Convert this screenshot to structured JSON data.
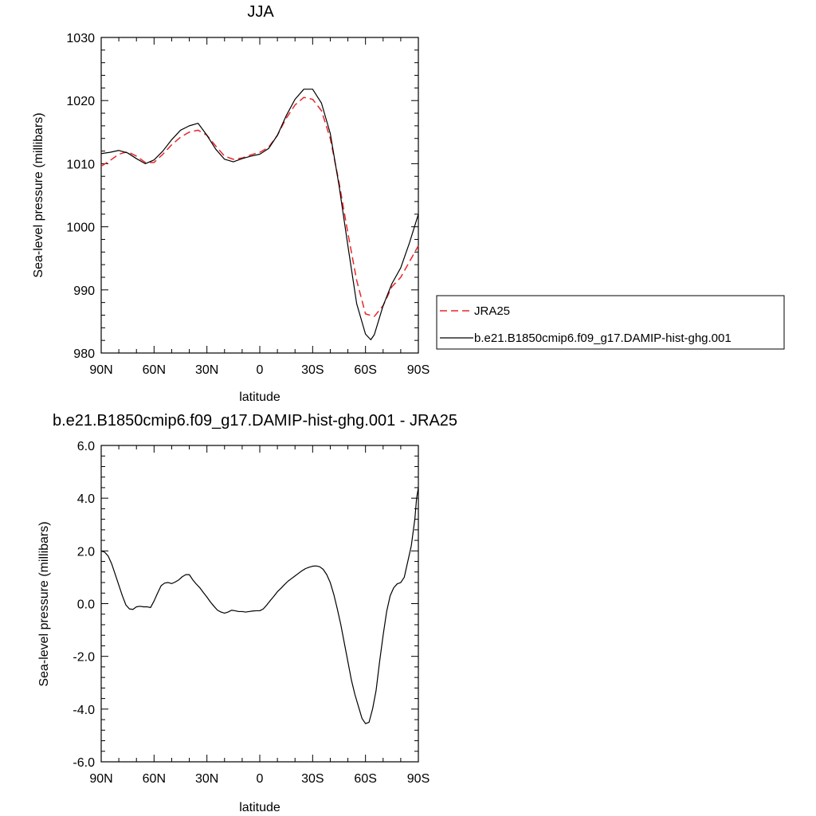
{
  "chart_data": [
    {
      "type": "line",
      "title": "JJA",
      "xlabel": "latitude",
      "ylabel": "Sea-level pressure (millibars)",
      "xlim": [
        90,
        -90
      ],
      "ylim": [
        980,
        1030
      ],
      "x_ticks": [
        90,
        60,
        30,
        0,
        -30,
        -60,
        -90
      ],
      "x_tick_labels": [
        "90N",
        "60N",
        "30N",
        "0",
        "30S",
        "60S",
        "90S"
      ],
      "y_ticks": [
        980,
        990,
        1000,
        1010,
        1020,
        1030
      ],
      "y_tick_labels": [
        "980",
        "990",
        "1000",
        "1010",
        "1020",
        "1030"
      ],
      "legend_position": "right",
      "series": [
        {
          "name": "JRA25",
          "color": "#e8262b",
          "dash": "dashed",
          "x": [
            90,
            85,
            80,
            75,
            70,
            65,
            60,
            55,
            50,
            45,
            40,
            35,
            30,
            25,
            20,
            15,
            10,
            5,
            0,
            -5,
            -10,
            -15,
            -20,
            -25,
            -30,
            -35,
            -40,
            -45,
            -50,
            -55,
            -60,
            -65,
            -70,
            -75,
            -80,
            -85,
            -90
          ],
          "y": [
            1009.6,
            1010.5,
            1011.5,
            1011.9,
            1011.2,
            1010.2,
            1010.2,
            1011.5,
            1013.0,
            1014.2,
            1015.0,
            1015.3,
            1014.5,
            1012.8,
            1011.2,
            1010.7,
            1010.9,
            1011.4,
            1011.8,
            1012.6,
            1014.5,
            1017.2,
            1019.3,
            1020.5,
            1020.2,
            1018.4,
            1014.0,
            1007.0,
            999.0,
            991.5,
            986.2,
            985.8,
            987.5,
            990.5,
            992.0,
            994.5,
            997.0
          ]
        },
        {
          "name": "b.e21.B1850cmip6.f09_g17.DAMIP-hist-ghg.001",
          "color": "#000000",
          "dash": "solid",
          "x": [
            90,
            85,
            80,
            75,
            70,
            65,
            60,
            55,
            50,
            45,
            40,
            35,
            30,
            25,
            20,
            15,
            10,
            5,
            0,
            -5,
            -10,
            -15,
            -20,
            -25,
            -30,
            -35,
            -40,
            -45,
            -50,
            -55,
            -60,
            -63,
            -65,
            -70,
            -75,
            -80,
            -85,
            -90
          ],
          "y": [
            1011.6,
            1011.8,
            1012.1,
            1011.7,
            1010.8,
            1010.0,
            1010.6,
            1012.0,
            1013.8,
            1015.3,
            1016.0,
            1016.4,
            1014.5,
            1012.3,
            1010.7,
            1010.3,
            1010.8,
            1011.2,
            1011.5,
            1012.4,
            1014.5,
            1017.6,
            1020.2,
            1021.8,
            1021.8,
            1019.6,
            1014.8,
            1006.5,
            997.0,
            987.8,
            983.0,
            982.1,
            982.9,
            987.5,
            991.0,
            993.5,
            997.5,
            1002.0
          ]
        }
      ]
    },
    {
      "type": "line",
      "title": "b.e21.B1850cmip6.f09_g17.DAMIP-hist-ghg.001 - JRA25",
      "xlabel": "latitude",
      "ylabel": "Sea-level pressure (millibars)",
      "xlim": [
        90,
        -90
      ],
      "ylim": [
        -6,
        6
      ],
      "x_ticks": [
        90,
        60,
        30,
        0,
        -30,
        -60,
        -90
      ],
      "x_tick_labels": [
        "90N",
        "60N",
        "30N",
        "0",
        "30S",
        "60S",
        "90S"
      ],
      "y_ticks": [
        -6,
        -4,
        -2,
        0,
        2,
        4,
        6
      ],
      "y_tick_labels": [
        "-6.0",
        "-4.0",
        "-2.0",
        "0.0",
        "2.0",
        "4.0",
        "6.0"
      ],
      "series": [
        {
          "color": "#000000",
          "dash": "solid",
          "x": [
            90,
            88,
            86,
            84,
            82,
            80,
            78,
            76,
            74,
            72,
            70,
            68,
            66,
            64,
            62,
            60,
            58,
            56,
            54,
            52,
            50,
            48,
            46,
            44,
            42,
            40,
            38,
            36,
            34,
            32,
            30,
            28,
            26,
            24,
            22,
            20,
            18,
            16,
            14,
            12,
            10,
            8,
            6,
            4,
            2,
            0,
            -2,
            -4,
            -6,
            -8,
            -10,
            -12,
            -14,
            -16,
            -18,
            -20,
            -22,
            -24,
            -26,
            -28,
            -30,
            -32,
            -34,
            -36,
            -38,
            -40,
            -42,
            -44,
            -46,
            -48,
            -50,
            -52,
            -54,
            -56,
            -58,
            -60,
            -62,
            -64,
            -66,
            -68,
            -70,
            -72,
            -74,
            -76,
            -78,
            -80,
            -82,
            -84,
            -86,
            -88,
            -89,
            -90
          ],
          "y": [
            2.0,
            1.95,
            1.8,
            1.5,
            1.1,
            0.7,
            0.3,
            -0.05,
            -0.2,
            -0.22,
            -0.12,
            -0.1,
            -0.12,
            -0.12,
            -0.15,
            0.1,
            0.4,
            0.68,
            0.78,
            0.8,
            0.76,
            0.82,
            0.9,
            1.02,
            1.1,
            1.1,
            0.9,
            0.74,
            0.6,
            0.42,
            0.25,
            0.06,
            -0.1,
            -0.25,
            -0.32,
            -0.36,
            -0.32,
            -0.25,
            -0.27,
            -0.3,
            -0.3,
            -0.32,
            -0.3,
            -0.28,
            -0.27,
            -0.27,
            -0.2,
            -0.05,
            0.12,
            0.28,
            0.45,
            0.58,
            0.72,
            0.85,
            0.95,
            1.05,
            1.15,
            1.25,
            1.33,
            1.38,
            1.42,
            1.43,
            1.4,
            1.3,
            1.1,
            0.8,
            0.35,
            -0.2,
            -0.8,
            -1.5,
            -2.2,
            -2.9,
            -3.45,
            -3.9,
            -4.35,
            -4.55,
            -4.5,
            -4.0,
            -3.3,
            -2.2,
            -1.2,
            -0.3,
            0.3,
            0.6,
            0.75,
            0.8,
            1.0,
            1.6,
            2.2,
            3.2,
            4.0,
            4.4
          ]
        }
      ]
    }
  ]
}
